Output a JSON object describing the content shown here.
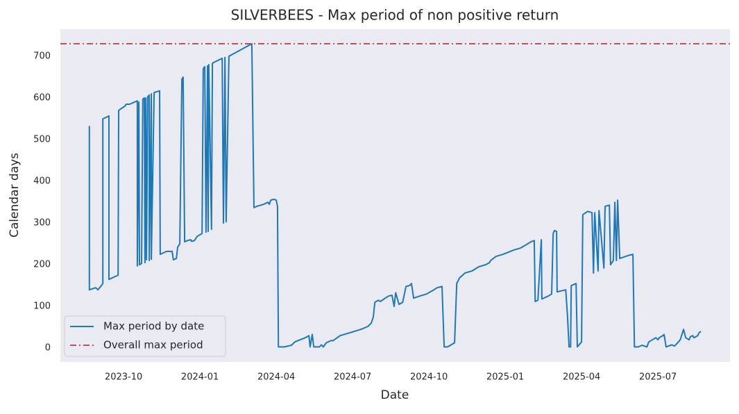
{
  "chart_data": {
    "type": "line",
    "title": "SILVERBEES - Max period of non positive return",
    "x_label": "Date",
    "y_label": "Calendar days",
    "x": [
      2023.638,
      2023.638,
      2023.659,
      2023.666,
      2023.677,
      2023.682,
      2023.682,
      2023.691,
      2023.702,
      2023.702,
      2023.732,
      2023.734,
      2023.743,
      2023.754,
      2023.759,
      2023.77,
      2023.795,
      2023.795,
      2023.8,
      2023.802,
      2023.809,
      2023.813,
      2023.818,
      2023.82,
      2023.823,
      2023.825,
      2023.829,
      2023.834,
      2023.834,
      2023.841,
      2023.841,
      2023.85,
      2023.868,
      2023.87,
      2023.891,
      2023.909,
      2023.913,
      2023.923,
      2023.927,
      2023.934,
      2023.941,
      2023.945,
      2023.95,
      2023.959,
      2023.97,
      2023.973,
      2023.982,
      2023.991,
      2024.007,
      2024.011,
      2024.016,
      2024.02,
      2024.025,
      2024.027,
      2024.029,
      2024.038,
      2024.041,
      2024.045,
      2024.073,
      2024.077,
      2024.082,
      2024.086,
      2024.095,
      2024.17,
      2024.177,
      2024.186,
      2024.209,
      2024.223,
      2024.227,
      2024.232,
      2024.243,
      2024.25,
      2024.254,
      2024.257,
      2024.277,
      2024.288,
      2024.3,
      2024.311,
      2024.345,
      2024.357,
      2024.361,
      2024.368,
      2024.373,
      2024.391,
      2024.398,
      2024.404,
      2024.414,
      2024.429,
      2024.436,
      2024.459,
      2024.482,
      2024.527,
      2024.55,
      2024.561,
      2024.568,
      2024.573,
      2024.584,
      2024.591,
      2024.607,
      2024.618,
      2024.629,
      2024.636,
      2024.641,
      2024.652,
      2024.664,
      2024.675,
      2024.686,
      2024.693,
      2024.7,
      2024.72,
      2024.743,
      2024.754,
      2024.766,
      2024.777,
      2024.793,
      2024.8,
      2024.811,
      2024.823,
      2024.834,
      2024.841,
      2024.85,
      2024.868,
      2024.891,
      2024.913,
      2024.936,
      2024.948,
      2024.952,
      2024.97,
      2024.993,
      2025.027,
      2025.05,
      2025.073,
      2025.084,
      2025.095,
      2025.098,
      2025.107,
      2025.118,
      2025.12,
      2025.141,
      2025.152,
      2025.157,
      2025.161,
      2025.168,
      2025.17,
      2025.198,
      2025.204,
      2025.209,
      2025.214,
      2025.216,
      2025.232,
      2025.236,
      2025.25,
      2025.254,
      2025.27,
      2025.284,
      2025.289,
      2025.293,
      2025.304,
      2025.307,
      2025.323,
      2025.327,
      2025.341,
      2025.345,
      2025.354,
      2025.359,
      2025.364,
      2025.368,
      2025.375,
      2025.402,
      2025.418,
      2025.423,
      2025.436,
      2025.448,
      2025.464,
      2025.47,
      2025.493,
      2025.5,
      2025.504,
      2025.516,
      2025.52,
      2025.527,
      2025.545,
      2025.554,
      2025.561,
      2025.573,
      2025.584,
      2025.591,
      2025.602,
      2025.607,
      2025.614,
      2025.618,
      2025.63,
      2025.636,
      2025.641
    ],
    "series": [
      {
        "name": "Max period by date",
        "color": "#1f77b4",
        "values": [
          533,
          140,
          145,
          140,
          150,
          155,
          550,
          553,
          557,
          165,
          175,
          570,
          575,
          580,
          585,
          585,
          593,
          197,
          590,
          200,
          203,
          597,
          600,
          205,
          600,
          212,
          603,
          607,
          210,
          610,
          213,
          613,
          617,
          225,
          232,
          232,
          212,
          215,
          242,
          250,
          645,
          650,
          255,
          258,
          260,
          256,
          258,
          268,
          275,
          670,
          675,
          278,
          677,
          280,
          680,
          285,
          683,
          685,
          695,
          300,
          697,
          303,
          700,
          730,
          337,
          340,
          345,
          350,
          345,
          355,
          357,
          355,
          340,
          3,
          3,
          5,
          7,
          15,
          25,
          30,
          3,
          33,
          3,
          3,
          8,
          3,
          13,
          18,
          18,
          30,
          35,
          45,
          52,
          60,
          75,
          110,
          115,
          112,
          120,
          125,
          127,
          100,
          133,
          105,
          110,
          148,
          150,
          155,
          120,
          125,
          130,
          135,
          140,
          145,
          148,
          3,
          3,
          8,
          13,
          155,
          168,
          180,
          185,
          195,
          200,
          205,
          210,
          220,
          225,
          235,
          240,
          250,
          255,
          258,
          112,
          115,
          260,
          118,
          125,
          130,
          275,
          282,
          280,
          135,
          140,
          75,
          3,
          3,
          150,
          155,
          3,
          15,
          320,
          328,
          325,
          180,
          325,
          185,
          330,
          192,
          340,
          343,
          200,
          210,
          350,
          210,
          355,
          215,
          222,
          225,
          3,
          3,
          7,
          3,
          15,
          25,
          20,
          25,
          30,
          33,
          3,
          8,
          5,
          10,
          20,
          45,
          25,
          20,
          28,
          30,
          25,
          30,
          38,
          40
        ]
      }
    ],
    "reference_line": {
      "name": "Overall max period",
      "value": 730,
      "color": "#c44e52"
    },
    "xlim": [
      2023.543,
      2025.736
    ],
    "xticks": [
      {
        "value": 2023.75,
        "label": "2023-10"
      },
      {
        "value": 2024.0,
        "label": "2024-01"
      },
      {
        "value": 2024.25,
        "label": "2024-04"
      },
      {
        "value": 2024.5,
        "label": "2024-07"
      },
      {
        "value": 2024.75,
        "label": "2024-10"
      },
      {
        "value": 2025.0,
        "label": "2025-01"
      },
      {
        "value": 2025.25,
        "label": "2025-04"
      },
      {
        "value": 2025.5,
        "label": "2025-07"
      }
    ],
    "ylim": [
      -33,
      765
    ],
    "yticks": [
      0,
      100,
      200,
      300,
      400,
      500,
      600,
      700
    ],
    "grid": false,
    "legend": "lower left"
  }
}
